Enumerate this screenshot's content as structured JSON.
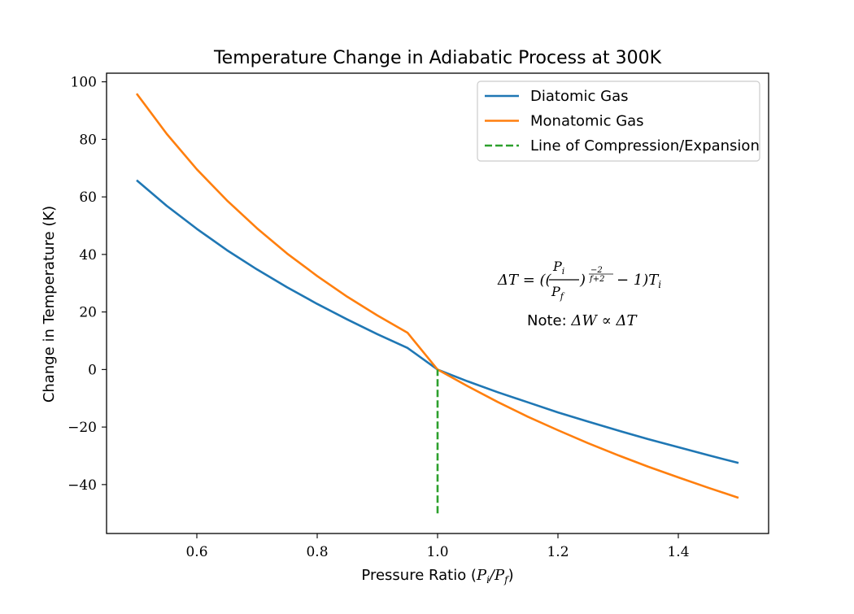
{
  "chart_data": {
    "type": "line",
    "title": "Temperature Change in Adiabatic Process at 300K",
    "xlabel": "Pressure Ratio (P_i/P_f)",
    "ylabel": "Change in Temperature (K)",
    "xlim": [
      0.45,
      1.55
    ],
    "ylim": [
      -57,
      103
    ],
    "xticks": [
      0.6,
      0.8,
      1.0,
      1.2,
      1.4
    ],
    "xtick_labels": [
      "0.6",
      "0.8",
      "1.0",
      "1.2",
      "1.4"
    ],
    "yticks": [
      -40,
      -20,
      0,
      20,
      40,
      60,
      80,
      100
    ],
    "ytick_labels": [
      "−40",
      "−20",
      "0",
      "20",
      "40",
      "60",
      "80",
      "100"
    ],
    "grid": false,
    "legend_position": "top-right",
    "initial_temperature_K": 300,
    "series": [
      {
        "name": "Diatomic Gas",
        "color": "#1f77b4",
        "style": "solid",
        "x": [
          0.5,
          0.55,
          0.6,
          0.65,
          0.7,
          0.75,
          0.8,
          0.85,
          0.9,
          0.95,
          1.0,
          1.05,
          1.1,
          1.15,
          1.2,
          1.25,
          1.3,
          1.35,
          1.4,
          1.45,
          1.5
        ],
        "y": [
          65.8,
          56.9,
          48.9,
          41.5,
          34.8,
          28.6,
          22.8,
          17.4,
          12.3,
          7.5,
          0.0,
          -4.1,
          -7.9,
          -11.4,
          -14.9,
          -18.1,
          -21.2,
          -24.2,
          -27.0,
          -29.8,
          -32.5
        ]
      },
      {
        "name": "Monatomic Gas",
        "color": "#ff7f0e",
        "style": "solid",
        "x": [
          0.5,
          0.55,
          0.6,
          0.65,
          0.7,
          0.75,
          0.8,
          0.85,
          0.9,
          0.95,
          1.0,
          1.05,
          1.1,
          1.15,
          1.2,
          1.25,
          1.3,
          1.35,
          1.4,
          1.45,
          1.5
        ],
        "y": [
          95.9,
          81.9,
          69.6,
          58.8,
          49.1,
          40.3,
          32.5,
          25.3,
          18.8,
          12.8,
          0.0,
          -5.8,
          -11.3,
          -16.4,
          -21.1,
          -25.6,
          -29.8,
          -33.8,
          -37.5,
          -41.1,
          -44.6
        ]
      },
      {
        "name": "Line of Compression/Expansion",
        "color": "#2ca02c",
        "style": "dashed",
        "x": [
          1.0,
          1.0
        ],
        "y": [
          -50,
          0
        ]
      }
    ],
    "annotations": [
      {
        "text": "ΔT = ((Pᵢ/P_f)^(−2/(f+2)) − 1)Tᵢ",
        "x": 1.24,
        "y": 32
      },
      {
        "text": "Note: ΔW ∝ ΔT",
        "x": 1.26,
        "y": 17
      }
    ]
  }
}
